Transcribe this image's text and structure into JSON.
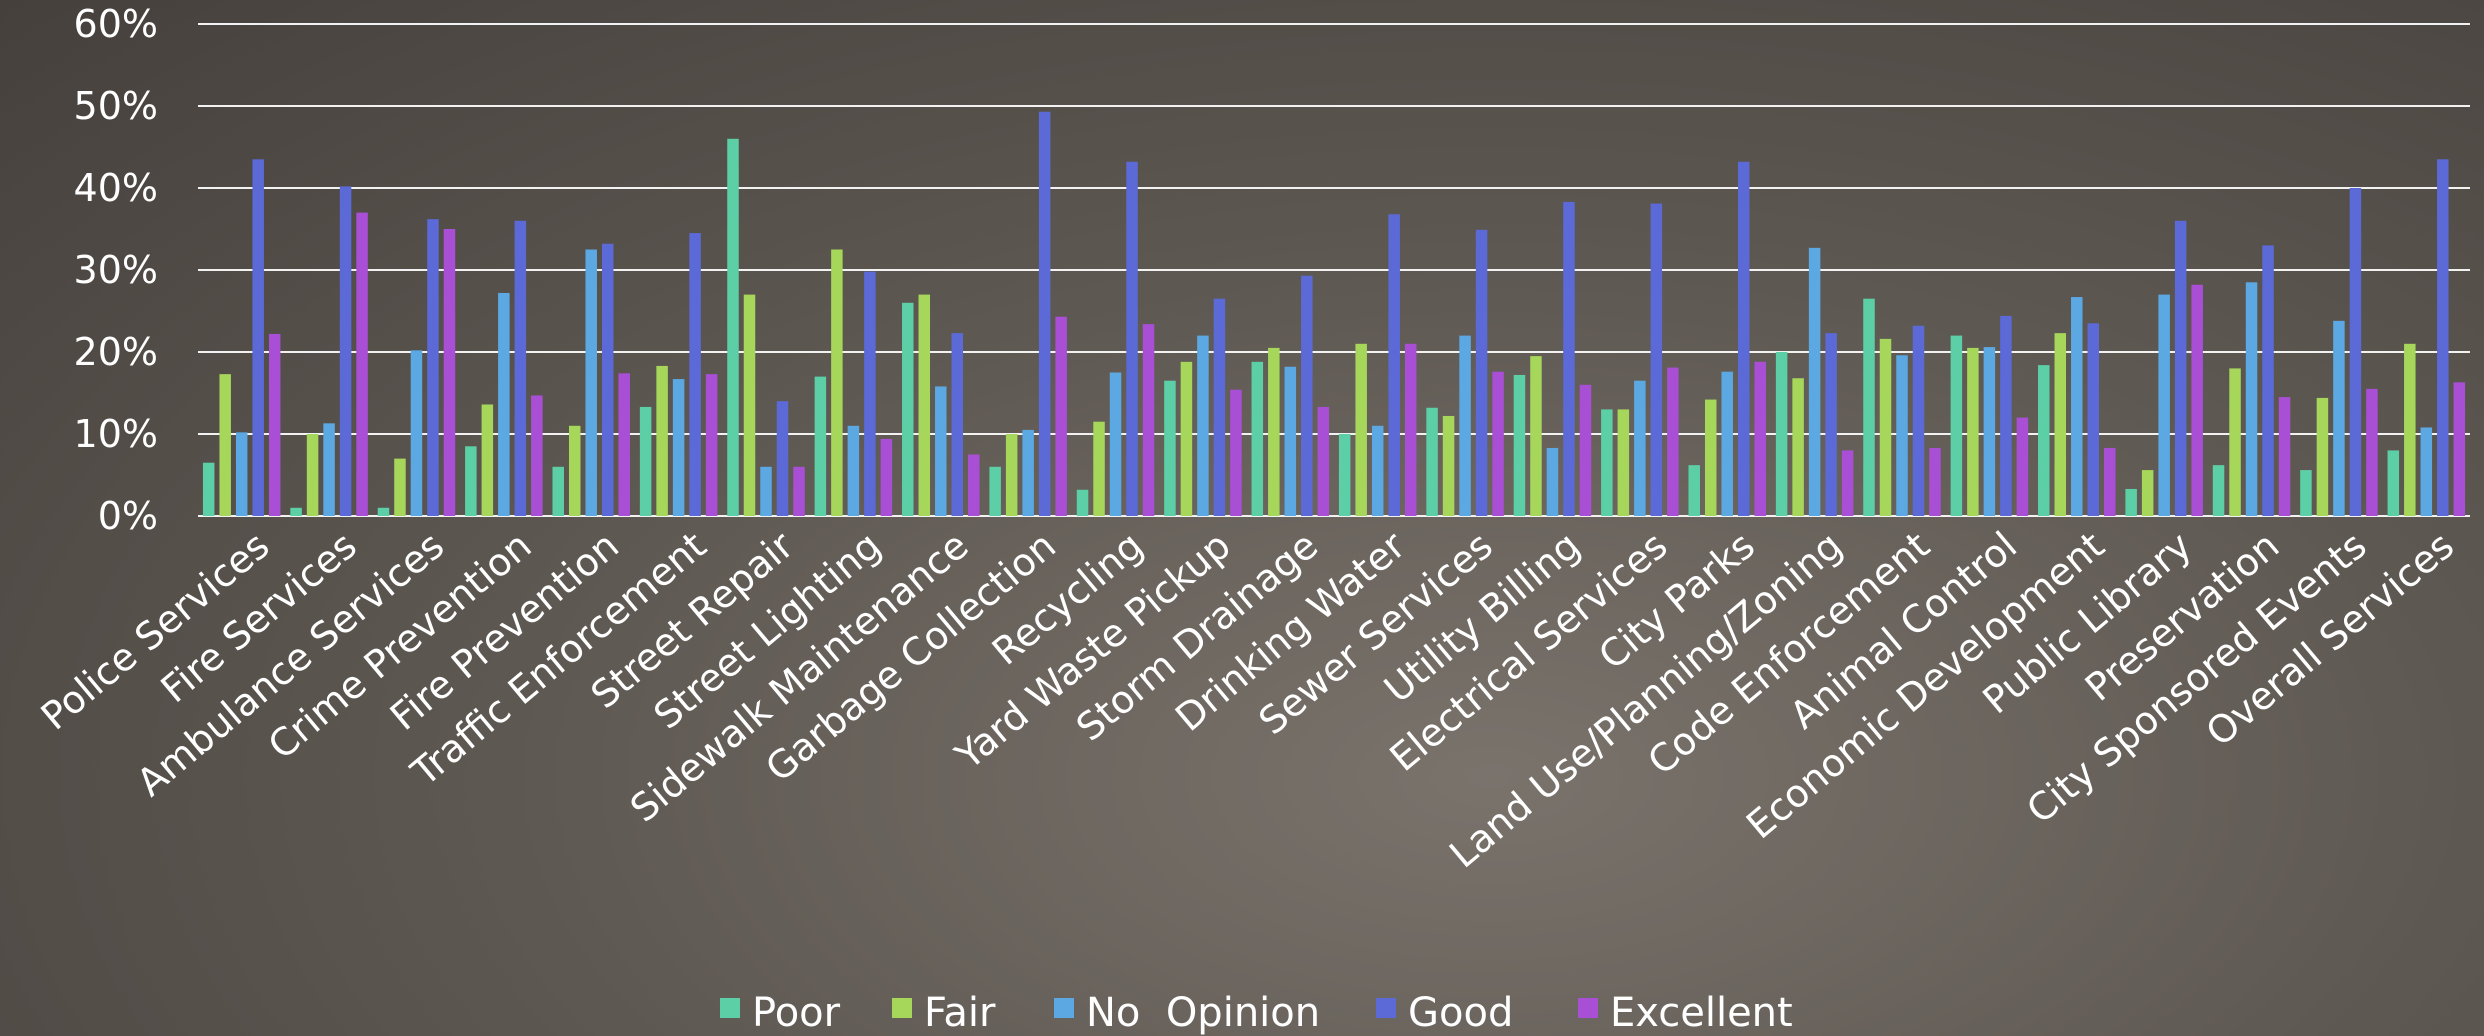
{
  "chart_data": {
    "type": "bar",
    "ylim": [
      0,
      60
    ],
    "y_ticks": [
      "0%",
      "10%",
      "20%",
      "30%",
      "40%",
      "50%",
      "60%"
    ],
    "y_tick_values": [
      0,
      10,
      20,
      30,
      40,
      50,
      60
    ],
    "grid": true,
    "legend_position": "bottom",
    "categories": [
      "Police Services",
      "Fire Services",
      "Ambulance Services",
      "Crime Prevention",
      "Fire Prevention",
      "Traffic Enforcement",
      "Street Repair",
      "Street Lighting",
      "Sidewalk Maintenance",
      "Garbage Collection",
      "Recycling",
      "Yard Waste Pickup",
      "Storm Drainage",
      "Drinking Water",
      "Sewer Services",
      "Utility Billing",
      "Electrical Services",
      "City Parks",
      "Land Use/Planning/Zoning",
      "Code Enforcement",
      "Animal Control",
      "Economic Development",
      "Public Library",
      "Preservation",
      "City Sponsored Events",
      "Overall Services"
    ],
    "series": [
      {
        "name": "Poor",
        "color": "#5ccfa6",
        "values": [
          6.5,
          1,
          1,
          8.5,
          6,
          13.3,
          46,
          17,
          26,
          6,
          3.2,
          16.5,
          18.8,
          10,
          13.2,
          17.2,
          13,
          6.2,
          20,
          26.5,
          22,
          18.4,
          3.3,
          6.2,
          5.6,
          8
        ]
      },
      {
        "name": "Fair",
        "color": "#a6d65a",
        "values": [
          17.3,
          10,
          7,
          13.6,
          11,
          18.3,
          27,
          32.5,
          27,
          10,
          11.5,
          18.8,
          20.5,
          21,
          12.2,
          19.5,
          13,
          14.2,
          16.8,
          21.6,
          20.5,
          22.3,
          5.6,
          18,
          14.4,
          21
        ]
      },
      {
        "name": "No  Opinion",
        "color": "#5ba8e3",
        "values": [
          10.2,
          11.3,
          20.2,
          27.2,
          32.5,
          16.7,
          6,
          11,
          15.8,
          10.5,
          17.5,
          22,
          18.2,
          11,
          22,
          8.3,
          16.5,
          17.6,
          32.7,
          19.6,
          20.6,
          26.7,
          27,
          28.5,
          23.8,
          10.8
        ]
      },
      {
        "name": "Good",
        "color": "#5b6ad6",
        "values": [
          43.5,
          40.2,
          36.2,
          36,
          33.2,
          34.5,
          14,
          29.8,
          22.3,
          49.3,
          43.2,
          26.5,
          29.3,
          36.8,
          34.9,
          38.3,
          38.1,
          43.2,
          22.3,
          23.2,
          24.4,
          23.5,
          36,
          33,
          40,
          43.5
        ]
      },
      {
        "name": "Excellent",
        "color": "#a84fd6",
        "values": [
          22.2,
          37,
          35,
          14.7,
          17.4,
          17.3,
          6,
          9.4,
          7.5,
          24.3,
          23.4,
          15.4,
          13.3,
          21,
          17.6,
          16,
          18.1,
          18.8,
          8,
          8.3,
          12,
          8.3,
          28.2,
          14.5,
          15.5,
          16.3
        ]
      }
    ]
  }
}
